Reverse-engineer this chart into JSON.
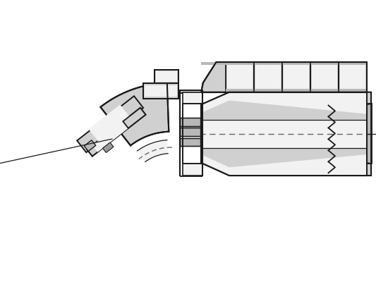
{
  "bg_color": "#ffffff",
  "line_color": "#1a1a1a",
  "fill_light": "#d0d0d0",
  "fill_lighter": "#e0e0e0",
  "fill_medium": "#b8b8b8",
  "fill_white": "#f2f2f2",
  "fill_dark": "#999999",
  "dashed_color": "#666666",
  "figsize": [
    5.33,
    4.0
  ],
  "dpi": 100
}
